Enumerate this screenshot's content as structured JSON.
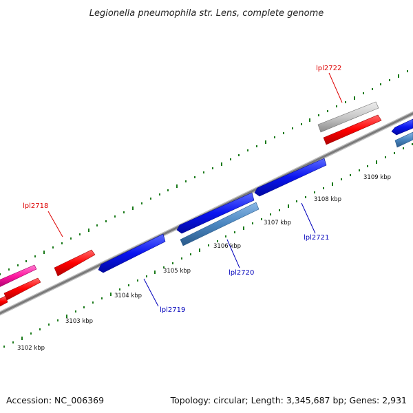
{
  "title": "Legionella pneumophila str. Lens, complete genome",
  "footer": {
    "accession": "Accession: NC_006369",
    "summary": "Topology: circular; Length: 3,345,687 bp; Genes: 2,931"
  },
  "colors": {
    "plus_gene": "#ff0000",
    "plus_gene_alt": "#ff1aa0",
    "plus_grey": "#c8c8c8",
    "minus_gene": "#0a14f0",
    "minus_gene_alt": "#4a86c0",
    "backbone": "#808080",
    "ticks": "#1a7a1a",
    "label_plus": "#dd0000",
    "label_minus": "#0000bb"
  },
  "scale_labels": [
    "3102 kbp",
    "3103 kbp",
    "3104 kbp",
    "3105 kbp",
    "3106 kbp",
    "3107 kbp",
    "3108 kbp",
    "3109 kbp"
  ],
  "gene_labels": [
    {
      "id": "lpl2718",
      "text": "lpl2718",
      "strand": "plus"
    },
    {
      "id": "lpl2722",
      "text": "lpl2722",
      "strand": "plus"
    },
    {
      "id": "lpl2719",
      "text": "lpl2719",
      "strand": "minus"
    },
    {
      "id": "lpl2720",
      "text": "lpl2720",
      "strand": "minus"
    },
    {
      "id": "lpl2721",
      "text": "lpl2721",
      "strand": "minus"
    }
  ]
}
